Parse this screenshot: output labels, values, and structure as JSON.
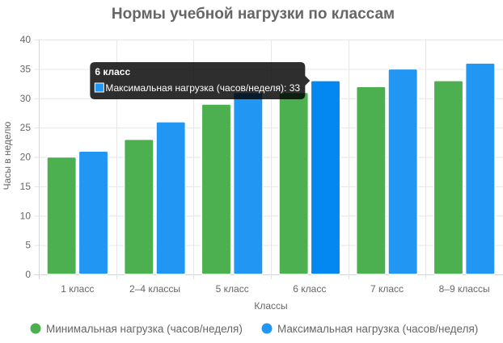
{
  "chart_data": {
    "type": "bar",
    "title": "Нормы учебной нагрузки по классам",
    "xlabel": "Классы",
    "ylabel": "Часы в неделю",
    "ylim": [
      0,
      40
    ],
    "yticks": [
      0,
      5,
      10,
      15,
      20,
      25,
      30,
      35,
      40
    ],
    "grid": true,
    "legend_position": "bottom",
    "categories": [
      "1 класс",
      "2–4 классы",
      "5 класс",
      "6 класс",
      "7 класс",
      "8–9 классы"
    ],
    "series": [
      {
        "name": "Минимальная нагрузка (часов/неделя)",
        "color": "#4CAF50",
        "border_color": "#ffffff",
        "values": [
          20,
          23,
          29,
          31,
          32,
          33
        ]
      },
      {
        "name": "Максимальная нагрузка (часов/неделя)",
        "color": "#2196F3",
        "border_color": "#ffffff",
        "values": [
          21,
          26,
          31,
          33,
          35,
          36
        ]
      }
    ],
    "tooltip": {
      "title": "6 класс",
      "body": "Максимальная нагрузка (часов/неделя): 33",
      "category_index": 3,
      "series_index": 1,
      "color": "#2196F3",
      "highlight_color": "#0288F0"
    }
  }
}
